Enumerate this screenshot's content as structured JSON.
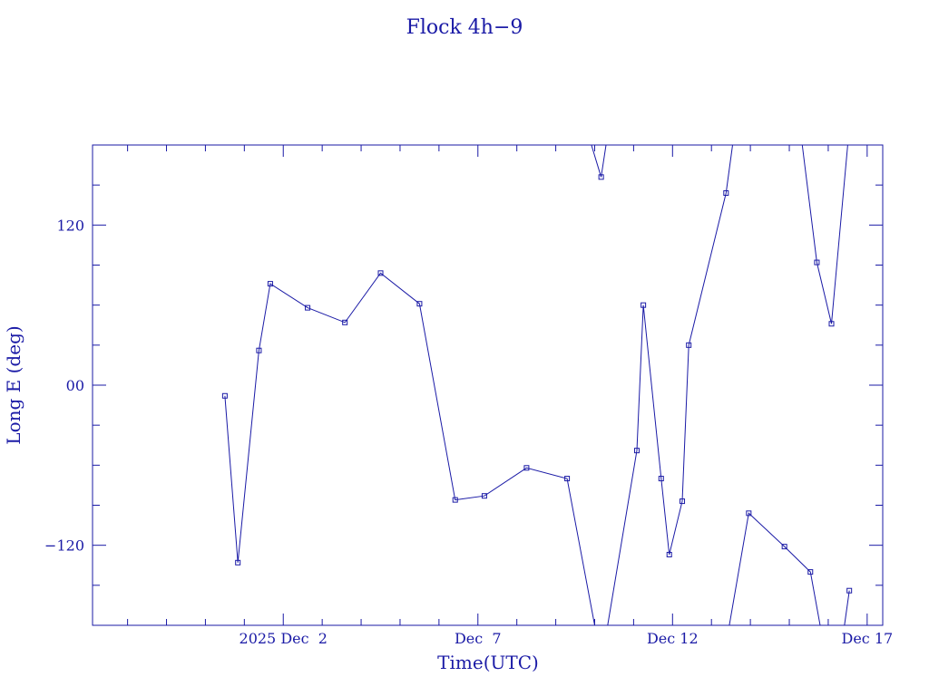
{
  "chart_data": {
    "type": "line",
    "title": "Flock 4h−9",
    "xlabel": "Time(UTC)",
    "ylabel": "Long E (deg)",
    "x_range_days_from_2025_11_28": [
      -0.9,
      19.4
    ],
    "ylim": [
      -180,
      180
    ],
    "x_ticks": [
      {
        "label": "2025 Dec  2",
        "day": 4
      },
      {
        "label": "Dec  7",
        "day": 9
      },
      {
        "label": "Dec 12",
        "day": 14
      },
      {
        "label": "Dec 17",
        "day": 19
      }
    ],
    "y_ticks": [
      {
        "label": "−120",
        "value": -120
      },
      {
        "label": "00",
        "value": 0
      },
      {
        "label": "120",
        "value": 120
      }
    ],
    "color": "#1a1aa6",
    "series": [
      {
        "points": [
          [
            "2025-11-30 12:00",
            -8
          ],
          [
            "2025-11-30 20:00",
            -133
          ],
          [
            "2025-12-01 09:00",
            26
          ],
          [
            "2025-12-01 16:00",
            76
          ],
          [
            "2025-12-02 15:00",
            58
          ],
          [
            "2025-12-03 14:00",
            47
          ],
          [
            "2025-12-04 12:00",
            84
          ],
          [
            "2025-12-05 12:00",
            61
          ],
          [
            "2025-12-06 10:00",
            -86
          ],
          [
            "2025-12-07 04:00",
            -83
          ],
          [
            "2025-12-08 06:00",
            -62
          ],
          [
            "2025-12-09 07:00",
            -70
          ],
          [
            "2025-12-10 00:00",
            -180
          ]
        ]
      },
      {
        "points": [
          [
            "2025-12-09 22:00",
            180
          ],
          [
            "2025-12-10 04:00",
            156
          ],
          [
            "2025-12-10 07:00",
            180
          ]
        ]
      },
      {
        "points": [
          [
            "2025-12-10 08:00",
            -180
          ],
          [
            "2025-12-11 02:00",
            -49
          ],
          [
            "2025-12-11 06:00",
            60
          ],
          [
            "2025-12-11 17:00",
            -70
          ],
          [
            "2025-12-11 22:00",
            -127
          ],
          [
            "2025-12-12 06:00",
            -87
          ],
          [
            "2025-12-12 10:00",
            30
          ],
          [
            "2025-12-13 09:00",
            144
          ],
          [
            "2025-12-13 13:00",
            180
          ]
        ]
      },
      {
        "points": [
          [
            "2025-12-13 11:00",
            -180
          ],
          [
            "2025-12-13 23:00",
            -96
          ],
          [
            "2025-12-14 21:00",
            -121
          ],
          [
            "2025-12-15 13:00",
            -140
          ],
          [
            "2025-12-15 19:00",
            -180
          ]
        ]
      },
      {
        "points": [
          [
            "2025-12-15 08:00",
            180
          ],
          [
            "2025-12-15 17:00",
            92
          ],
          [
            "2025-12-16 02:00",
            46
          ],
          [
            "2025-12-16 12:00",
            180
          ]
        ]
      },
      {
        "points": [
          [
            "2025-12-16 10:00",
            -180
          ],
          [
            "2025-12-16 13:00",
            -154
          ]
        ]
      }
    ],
    "markers_on": [
      [
        "2025-11-30 12:00",
        "2025-11-30 20:00",
        "2025-12-01 09:00",
        "2025-12-01 16:00",
        "2025-12-02 15:00",
        "2025-12-03 14:00",
        "2025-12-04 12:00",
        "2025-12-05 12:00",
        "2025-12-06 10:00",
        "2025-12-07 04:00",
        "2025-12-08 06:00",
        "2025-12-09 07:00"
      ],
      [
        "2025-12-10 04:00"
      ],
      [
        "2025-12-11 02:00",
        "2025-12-11 06:00",
        "2025-12-11 17:00",
        "2025-12-11 22:00",
        "2025-12-12 06:00",
        "2025-12-12 10:00",
        "2025-12-13 09:00"
      ],
      [
        "2025-12-13 23:00",
        "2025-12-14 21:00",
        "2025-12-15 13:00"
      ],
      [
        "2025-12-15 17:00",
        "2025-12-16 02:00"
      ],
      [
        "2025-12-16 13:00"
      ]
    ],
    "grid": false,
    "legend": "none"
  }
}
